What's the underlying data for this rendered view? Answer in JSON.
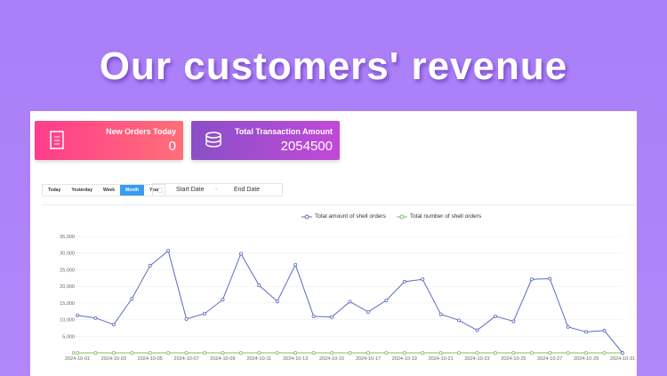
{
  "headline": "Our customers' revenue",
  "stats": [
    {
      "label": "New Orders Today",
      "value": "0",
      "icon": "document-icon"
    },
    {
      "label": "Total Transaction Amount",
      "value": "2054500",
      "icon": "coins-icon"
    }
  ],
  "range_buttons": [
    {
      "label": "Today"
    },
    {
      "label": "Yesterday"
    },
    {
      "label": "Week"
    },
    {
      "label": "Month",
      "active": true
    },
    {
      "label": "Year"
    }
  ],
  "date_range": {
    "start": "Start Date",
    "separator": "-",
    "end": "End Date"
  },
  "colors": {
    "series1": "#5b6bbf",
    "series2": "#7cc35a",
    "grid": "#eeeeee"
  },
  "chart_data": {
    "type": "line",
    "x": [
      "2024-10-01",
      "2024-10-02",
      "2024-10-03",
      "2024-10-04",
      "2024-10-05",
      "2024-10-06",
      "2024-10-07",
      "2024-10-08",
      "2024-10-09",
      "2024-10-10",
      "2024-10-11",
      "2024-10-12",
      "2024-10-13",
      "2024-10-14",
      "2024-10-15",
      "2024-10-16",
      "2024-10-17",
      "2024-10-18",
      "2024-10-19",
      "2024-10-20",
      "2024-10-21",
      "2024-10-22",
      "2024-10-23",
      "2024-10-24",
      "2024-10-25",
      "2024-10-26",
      "2024-10-27",
      "2024-10-28",
      "2024-10-29",
      "2024-10-30",
      "2024-10-31"
    ],
    "series": [
      {
        "name": "Total amount of shell orders",
        "values": [
          11300,
          10500,
          8500,
          16300,
          26200,
          30700,
          10200,
          11800,
          16000,
          29800,
          20300,
          15500,
          26500,
          11000,
          10800,
          15400,
          12300,
          15800,
          21400,
          22100,
          11600,
          9800,
          6800,
          11000,
          9500,
          22100,
          22300,
          7800,
          6300,
          6700,
          0
        ]
      },
      {
        "name": "Total number of shell orders",
        "values": [
          0,
          0,
          0,
          0,
          0,
          0,
          0,
          0,
          0,
          0,
          0,
          0,
          0,
          0,
          0,
          0,
          0,
          0,
          0,
          0,
          0,
          0,
          0,
          0,
          0,
          0,
          0,
          0,
          0,
          0,
          0
        ]
      }
    ],
    "yticks": [
      "0",
      "5,000",
      "10,000",
      "15,000",
      "20,000",
      "25,000",
      "30,000",
      "35,000"
    ],
    "ylim": [
      0,
      35000
    ],
    "grid": true,
    "legend": "top-center"
  }
}
